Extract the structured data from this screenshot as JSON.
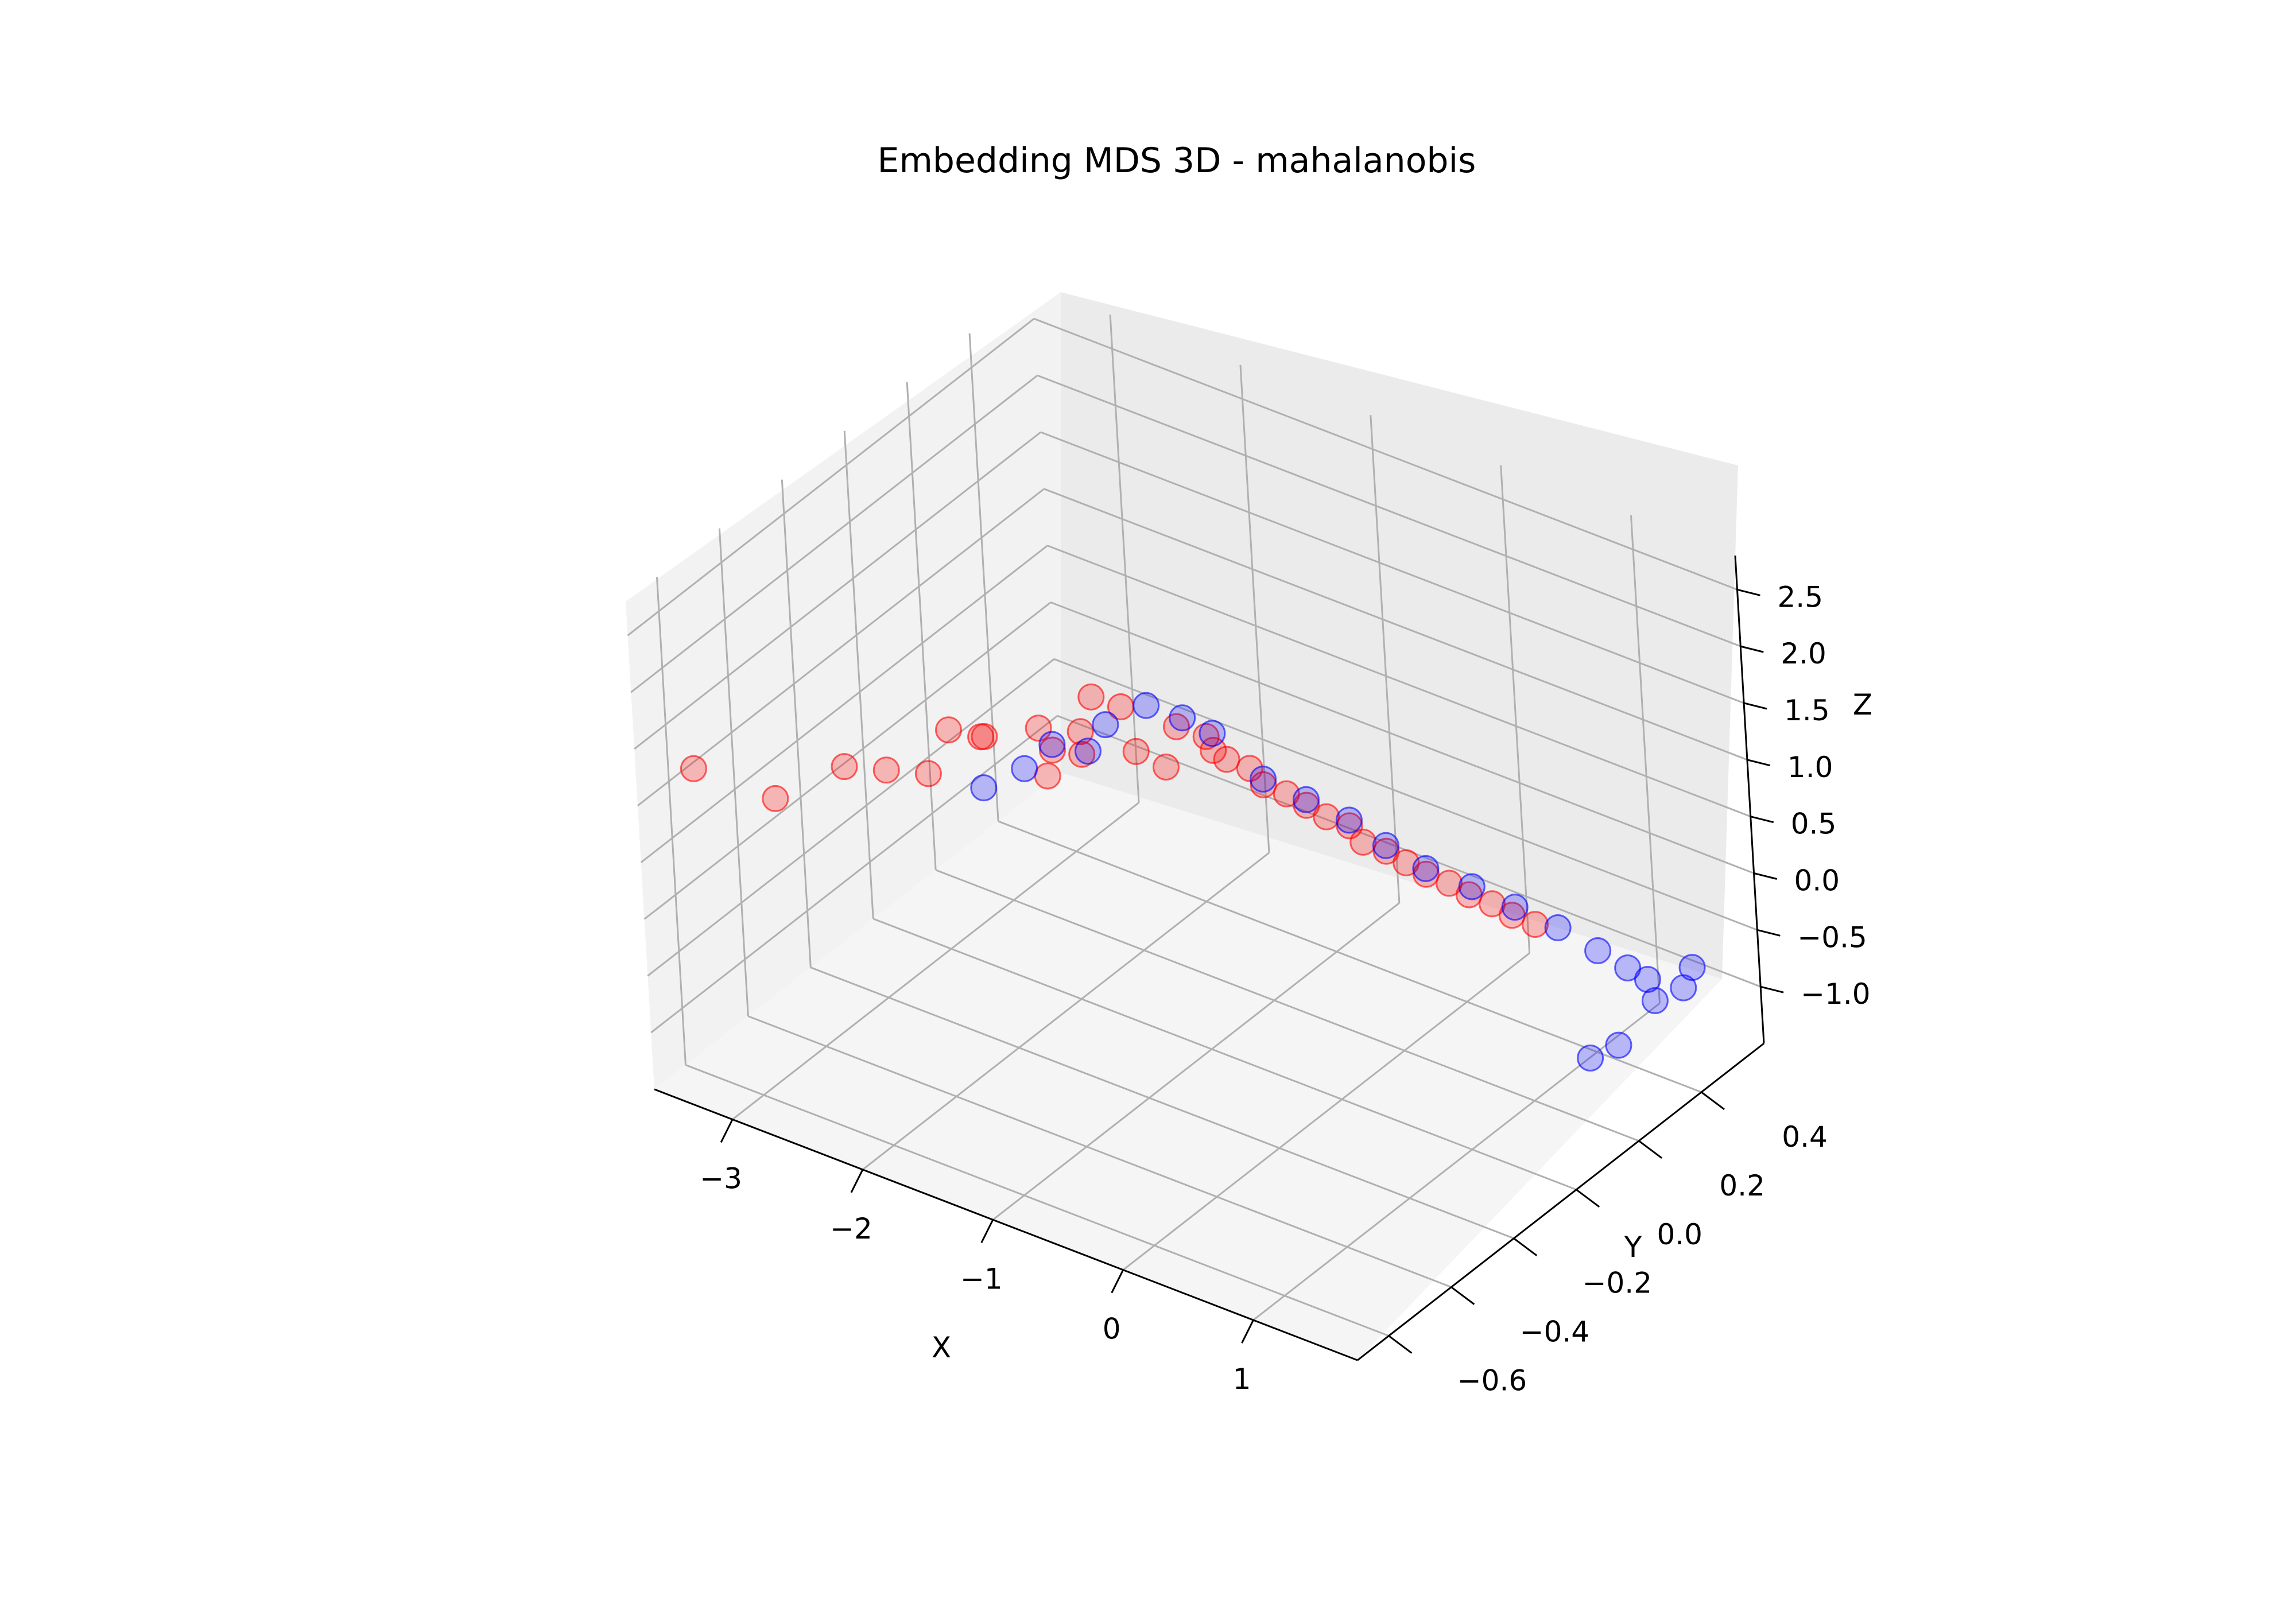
{
  "chart_data": {
    "type": "scatter3d",
    "title": "Embedding MDS 3D - mahalanobis",
    "xlabel": "X",
    "ylabel": "Y",
    "zlabel": "Z",
    "xlim": [
      -3.6,
      1.8
    ],
    "ylim": [
      -0.7,
      0.6
    ],
    "zlim": [
      -1.5,
      2.8
    ],
    "x_ticks": [
      -3,
      -2,
      -1,
      0,
      1
    ],
    "y_ticks": [
      -0.6,
      -0.4,
      -0.2,
      0.0,
      0.2,
      0.4
    ],
    "z_ticks": [
      -1.0,
      -0.5,
      0.0,
      0.5,
      1.0,
      1.5,
      2.0,
      2.5
    ],
    "x_tick_labels": [
      "−3",
      "−2",
      "−1",
      "0",
      "1"
    ],
    "y_tick_labels": [
      "−0.6",
      "−0.4",
      "−0.2",
      "0.0",
      "0.2",
      "0.4"
    ],
    "z_tick_labels": [
      "−1.0",
      "−0.5",
      "0.0",
      "0.5",
      "1.0",
      "1.5",
      "2.0",
      "2.5"
    ],
    "grid": true,
    "colors": {
      "class_a": "#ff0000",
      "class_b": "#0000ff",
      "pane": "#f2f2f2",
      "grid": "#b0b0b0"
    },
    "series": [
      {
        "color": "#ff0000",
        "points": [
          [
            -0.8,
            -0.55,
            2.6
          ],
          [
            -0.6,
            -0.5,
            2.35
          ],
          [
            -0.75,
            -0.55,
            2.2
          ],
          [
            -3.4,
            -0.6,
            1.2
          ],
          [
            -2.9,
            -0.55,
            1.05
          ],
          [
            -2.6,
            -0.45,
            1.25
          ],
          [
            -2.4,
            -0.4,
            1.2
          ],
          [
            -2.2,
            -0.35,
            1.15
          ],
          [
            -2.15,
            -0.3,
            1.45
          ],
          [
            -2.0,
            -0.25,
            1.35
          ],
          [
            -1.9,
            -0.3,
            1.5
          ],
          [
            -1.6,
            -0.2,
            1.3
          ],
          [
            -1.5,
            -0.15,
            1.4
          ],
          [
            -1.4,
            -0.15,
            1.75
          ],
          [
            -1.3,
            -0.1,
            1.6
          ],
          [
            -1.2,
            -0.1,
            1.25
          ],
          [
            -1.1,
            -0.05,
            1.05
          ],
          [
            -1.0,
            -0.05,
            1.45
          ],
          [
            -0.9,
            0.0,
            1.3
          ],
          [
            -0.85,
            0.0,
            1.2
          ],
          [
            -0.8,
            0.02,
            1.1
          ],
          [
            -0.7,
            0.05,
            1.0
          ],
          [
            -0.6,
            0.05,
            0.9
          ],
          [
            -0.5,
            0.08,
            0.8
          ],
          [
            -0.4,
            0.1,
            0.7
          ],
          [
            -0.3,
            0.12,
            0.6
          ],
          [
            -0.2,
            0.15,
            0.5
          ],
          [
            -0.1,
            0.15,
            0.4
          ],
          [
            0.0,
            0.18,
            0.3
          ],
          [
            0.1,
            0.2,
            0.2
          ],
          [
            0.2,
            0.22,
            0.1
          ],
          [
            0.3,
            0.25,
            0.0
          ],
          [
            0.4,
            0.27,
            -0.1
          ],
          [
            0.5,
            0.3,
            -0.2
          ],
          [
            0.6,
            0.32,
            -0.3
          ],
          [
            0.7,
            0.35,
            -0.4
          ]
        ]
      },
      {
        "color": "#0000ff",
        "points": [
          [
            -0.55,
            -0.5,
            2.4
          ],
          [
            -1.9,
            -0.3,
            1.05
          ],
          [
            -1.7,
            -0.25,
            1.2
          ],
          [
            -1.6,
            -0.2,
            1.35
          ],
          [
            -1.3,
            -0.15,
            1.55
          ],
          [
            -1.1,
            -0.1,
            1.7
          ],
          [
            -0.95,
            -0.05,
            1.55
          ],
          [
            -0.85,
            0.0,
            1.35
          ],
          [
            -0.6,
            0.05,
            0.95
          ],
          [
            -0.4,
            0.1,
            0.75
          ],
          [
            -0.2,
            0.15,
            0.55
          ],
          [
            0.0,
            0.18,
            0.35
          ],
          [
            0.2,
            0.22,
            0.15
          ],
          [
            0.4,
            0.28,
            -0.05
          ],
          [
            0.6,
            0.33,
            -0.25
          ],
          [
            0.8,
            0.38,
            -0.45
          ],
          [
            1.0,
            0.42,
            -0.65
          ],
          [
            1.15,
            0.45,
            -0.8
          ],
          [
            1.25,
            0.47,
            -0.9
          ],
          [
            1.35,
            0.45,
            -1.0
          ],
          [
            1.45,
            0.5,
            -0.95
          ],
          [
            1.3,
            0.35,
            -1.2
          ],
          [
            1.2,
            0.3,
            -1.25
          ],
          [
            1.4,
            0.55,
            -0.9
          ]
        ]
      }
    ]
  }
}
